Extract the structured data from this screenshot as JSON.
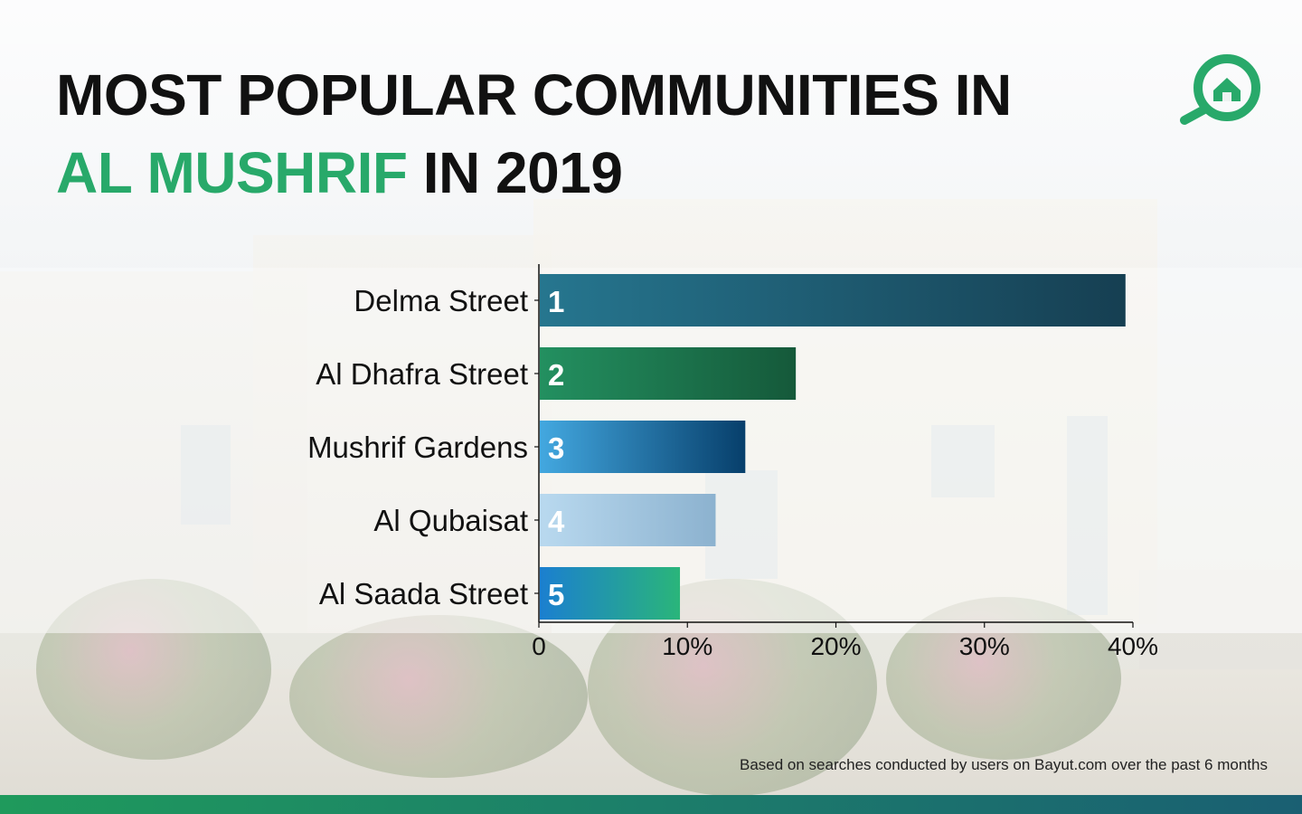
{
  "title": {
    "line1": "MOST POPULAR COMMUNITIES IN",
    "highlight": "AL MUSHRIF",
    "line2_rest": " IN 2019"
  },
  "logo_icon": "bayut-house-magnifier-icon",
  "footnote": "Based on searches conducted by users on Bayut.com over the past 6 months",
  "colors": {
    "accent_green": "#28a96a",
    "bottom_bar": "#1f8a60"
  },
  "chart_data": {
    "type": "bar",
    "orientation": "horizontal",
    "title": "MOST POPULAR COMMUNITIES IN AL MUSHRIF IN 2019",
    "categories": [
      "Delma Street",
      "Al Dhafra Street",
      "Mushrif Gardens",
      "Al Qubaisat",
      "Al Saada Street"
    ],
    "values": [
      39.5,
      17.3,
      13.9,
      11.9,
      9.5
    ],
    "ranks": [
      "1",
      "2",
      "3",
      "4",
      "5"
    ],
    "unit": "%",
    "xlim": [
      0,
      40
    ],
    "xticks": [
      0,
      10,
      20,
      30,
      40
    ],
    "xtick_labels": [
      "0",
      "10%",
      "20%",
      "30%",
      "40%"
    ],
    "grid": false,
    "legend": "none",
    "bar_gradients": [
      [
        "#26768f",
        "#163f52"
      ],
      [
        "#239060",
        "#15593a"
      ],
      [
        "#43a8e0",
        "#073f6b"
      ],
      [
        "#b9d9ef",
        "#8cb2cf"
      ],
      [
        "#1b7fd0",
        "#2ab57a"
      ]
    ]
  }
}
